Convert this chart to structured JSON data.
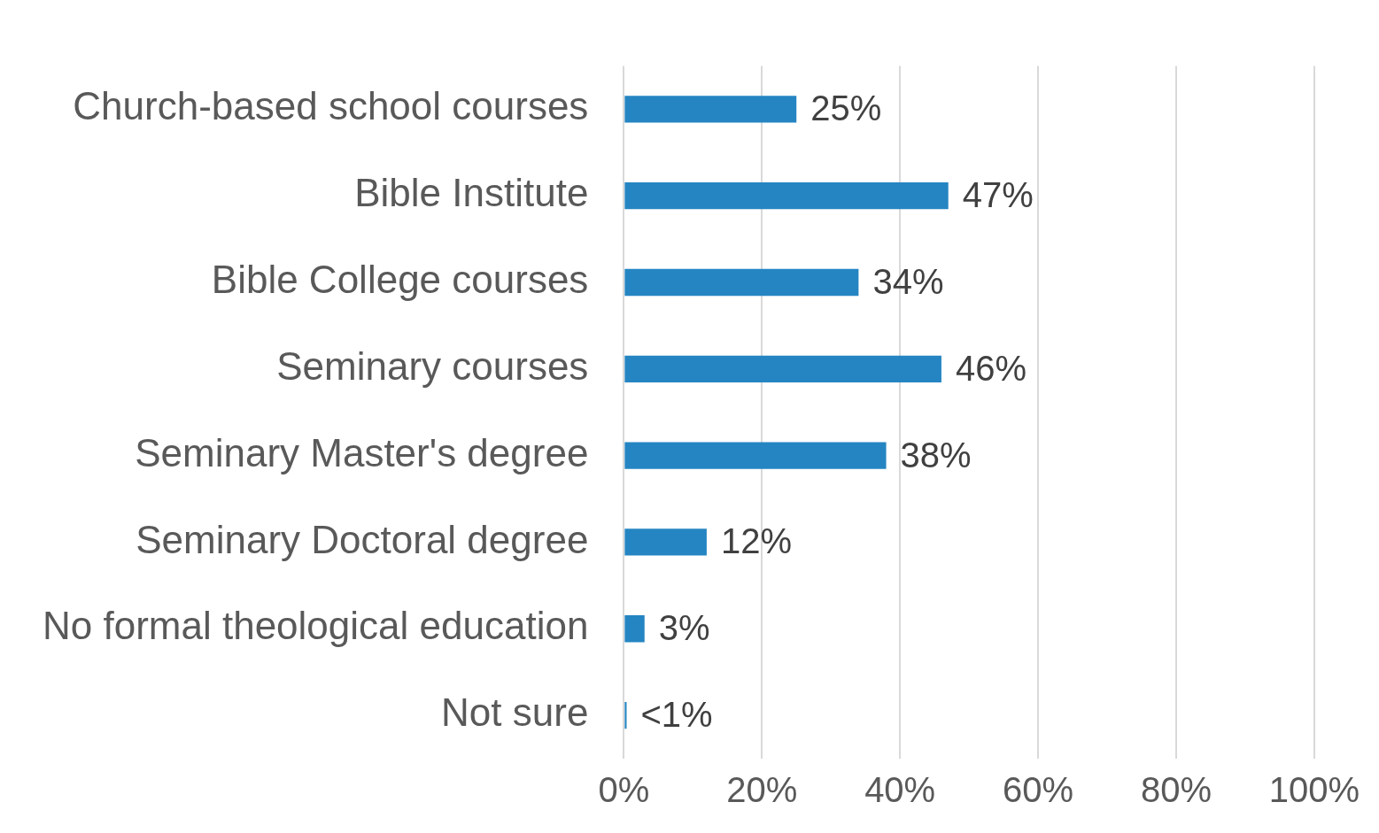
{
  "chart_data": {
    "type": "bar",
    "orientation": "horizontal",
    "categories": [
      "Church-based school courses",
      "Bible Institute",
      "Bible College courses",
      "Seminary courses",
      "Seminary Master's degree",
      "Seminary Doctoral degree",
      "No formal theological education",
      "Not sure"
    ],
    "values": [
      25,
      47,
      34,
      46,
      38,
      12,
      3,
      0.4
    ],
    "value_labels": [
      "25%",
      "47%",
      "34%",
      "46%",
      "38%",
      "12%",
      "3%",
      "<1%"
    ],
    "color": "#2585c2",
    "xlim": [
      0,
      100
    ],
    "xticks": [
      {
        "value": 0,
        "label": "0%"
      },
      {
        "value": 20,
        "label": "20%"
      },
      {
        "value": 40,
        "label": "40%"
      },
      {
        "value": 60,
        "label": "60%"
      },
      {
        "value": 80,
        "label": "80%"
      },
      {
        "value": 100,
        "label": "100%"
      }
    ],
    "grid": "x",
    "legend": false
  }
}
